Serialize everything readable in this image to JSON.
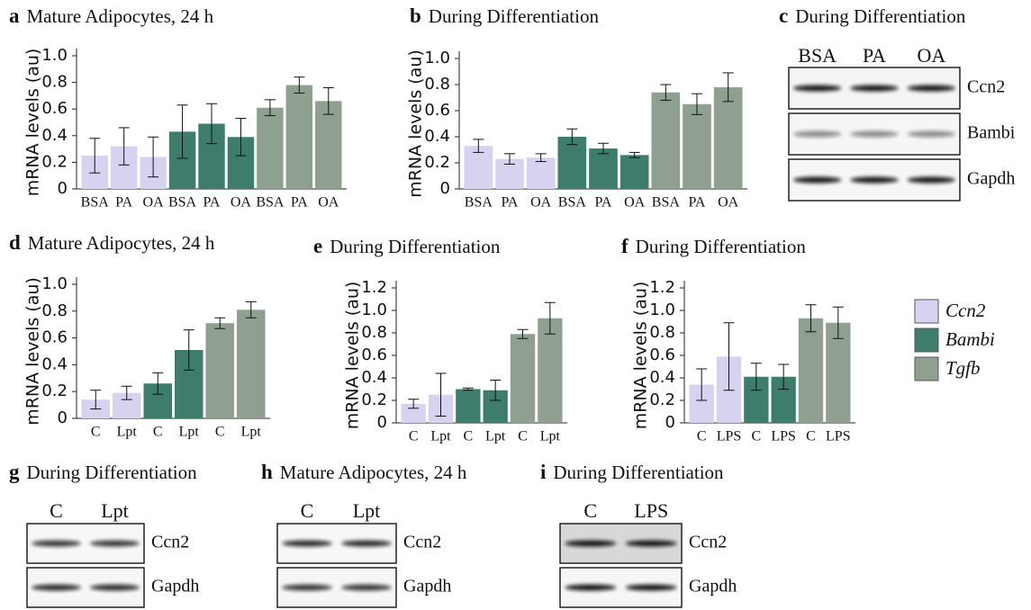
{
  "chart_data": [
    {
      "type": "bar",
      "label": "a",
      "title": "Mature Adipocytes, 24 h",
      "ylabel": "mRNA levels (au)",
      "categories": [
        "BSA",
        "PA",
        "OA",
        "BSA",
        "PA",
        "OA",
        "BSA",
        "PA",
        "OA"
      ],
      "values": [
        0.25,
        0.32,
        0.24,
        0.43,
        0.49,
        0.39,
        0.61,
        0.78,
        0.66
      ],
      "errors": [
        0.13,
        0.14,
        0.15,
        0.2,
        0.15,
        0.14,
        0.06,
        0.06,
        0.1
      ],
      "colors": [
        "#d6d2ef",
        "#d6d2ef",
        "#d6d2ef",
        "#3e7d6b",
        "#3e7d6b",
        "#3e7d6b",
        "#8fa090",
        "#8fa090",
        "#8fa090"
      ],
      "ylim": [
        0,
        1
      ],
      "yticks": [
        0,
        0.2,
        0.4,
        0.6,
        0.8,
        {
          "value": 1,
          "label": "1.0"
        }
      ]
    },
    {
      "type": "bar",
      "label": "b",
      "title": "During Differentiation",
      "ylabel": "mRNA levels (au)",
      "categories": [
        "BSA",
        "PA",
        "OA",
        "BSA",
        "PA",
        "OA",
        "BSA",
        "PA",
        "OA"
      ],
      "values": [
        0.33,
        0.23,
        0.24,
        0.4,
        0.31,
        0.26,
        0.74,
        0.65,
        0.78
      ],
      "errors": [
        0.05,
        0.04,
        0.03,
        0.06,
        0.04,
        0.02,
        0.06,
        0.08,
        0.11
      ],
      "colors": [
        "#d6d2ef",
        "#d6d2ef",
        "#d6d2ef",
        "#3e7d6b",
        "#3e7d6b",
        "#3e7d6b",
        "#8fa090",
        "#8fa090",
        "#8fa090"
      ],
      "ylim": [
        0,
        1
      ],
      "yticks": [
        0,
        0.2,
        0.4,
        0.6,
        0.8,
        {
          "value": 1,
          "label": "1.0"
        }
      ]
    },
    {
      "type": "bar",
      "label": "d",
      "title": "Mature Adipocytes, 24 h",
      "ylabel": "mRNA levels (au)",
      "categories": [
        "C",
        "Lpt",
        "C",
        "Lpt",
        "C",
        "Lpt"
      ],
      "values": [
        0.14,
        0.19,
        0.26,
        0.51,
        0.71,
        0.81
      ],
      "errors": [
        0.07,
        0.05,
        0.08,
        0.15,
        0.04,
        0.06
      ],
      "colors": [
        "#d6d2ef",
        "#d6d2ef",
        "#3e7d6b",
        "#3e7d6b",
        "#8fa090",
        "#8fa090"
      ],
      "ylim": [
        0,
        1
      ],
      "yticks": [
        0,
        0.2,
        0.4,
        0.6,
        0.8,
        {
          "value": 1,
          "label": "1.0"
        }
      ]
    },
    {
      "type": "bar",
      "label": "e",
      "title": "During Differentiation",
      "ylabel": "mRNA levels (au)",
      "categories": [
        "C",
        "Lpt",
        "C",
        "Lpt",
        "C",
        "Lpt"
      ],
      "values": [
        0.17,
        0.25,
        0.3,
        0.29,
        0.79,
        0.93
      ],
      "errors": [
        0.04,
        0.19,
        0.01,
        0.09,
        0.04,
        0.14
      ],
      "colors": [
        "#d6d2ef",
        "#d6d2ef",
        "#3e7d6b",
        "#3e7d6b",
        "#8fa090",
        "#8fa090"
      ],
      "ylim": [
        0,
        1.2
      ],
      "yticks": [
        0,
        0.2,
        0.4,
        0.6,
        0.8,
        {
          "value": 1,
          "label": "1.0"
        },
        1.2
      ]
    },
    {
      "type": "bar",
      "label": "f",
      "title": "During Differentiation",
      "ylabel": "mRNA levels (au)",
      "categories": [
        "C",
        "LPS",
        "C",
        "LPS",
        "C",
        "LPS"
      ],
      "values": [
        0.34,
        0.59,
        0.41,
        0.41,
        0.93,
        0.89
      ],
      "errors": [
        0.14,
        0.3,
        0.12,
        0.11,
        0.12,
        0.14
      ],
      "colors": [
        "#d6d2ef",
        "#d6d2ef",
        "#3e7d6b",
        "#3e7d6b",
        "#8fa090",
        "#8fa090"
      ],
      "ylim": [
        0,
        1.2
      ],
      "yticks": [
        0,
        0.2,
        0.4,
        0.6,
        0.8,
        {
          "value": 1,
          "label": "1.0"
        },
        1.2
      ]
    }
  ],
  "legend": [
    {
      "name": "Ccn2",
      "color": "#d6d2ef"
    },
    {
      "name": "Bambi",
      "color": "#3e7d6b"
    },
    {
      "name": "Tgfb",
      "color": "#8fa090"
    }
  ],
  "blots": [
    {
      "label": "c",
      "title": "During Differentiation",
      "lanes": [
        "BSA",
        "PA",
        "OA"
      ],
      "rows": [
        "Ccn2",
        "Bambi",
        "Gapdh"
      ]
    },
    {
      "label": "g",
      "title": "During Differentiation",
      "lanes": [
        "C",
        "Lpt"
      ],
      "rows": [
        "Ccn2",
        "Gapdh"
      ]
    },
    {
      "label": "h",
      "title": "Mature Adipocytes, 24 h",
      "lanes": [
        "C",
        "Lpt"
      ],
      "rows": [
        "Ccn2",
        "Gapdh"
      ]
    },
    {
      "label": "i",
      "title": "During Differentiation",
      "lanes": [
        "C",
        "LPS"
      ],
      "rows": [
        "Ccn2",
        "Gapdh"
      ]
    }
  ]
}
